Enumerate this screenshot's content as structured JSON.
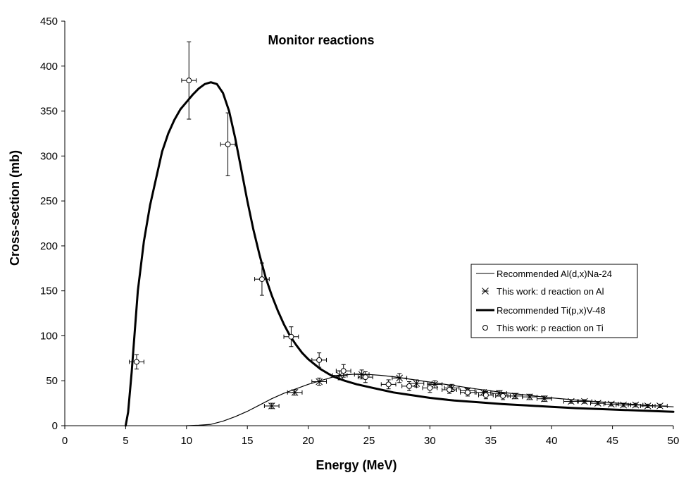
{
  "chart_data": {
    "type": "scatter",
    "title": "Monitor reactions",
    "xlabel": "Energy (MeV)",
    "ylabel": "Cross-section (mb)",
    "xlim": [
      0,
      50
    ],
    "ylim": [
      0,
      450
    ],
    "xticks": [
      0,
      5,
      10,
      15,
      20,
      25,
      30,
      35,
      40,
      45,
      50
    ],
    "yticks": [
      0,
      50,
      100,
      150,
      200,
      250,
      300,
      350,
      400,
      450
    ],
    "grid": false,
    "legend_position": "right",
    "series": [
      {
        "name": "Recommended Al(d,x)Na-24",
        "kind": "line",
        "style": "thin",
        "color": "#000000",
        "x": [
          10,
          11,
          12,
          13,
          14,
          15,
          16,
          17,
          18,
          19,
          20,
          21,
          22,
          23,
          24,
          25,
          26,
          27,
          28,
          29,
          30,
          32,
          34,
          36,
          38,
          40,
          42,
          44,
          46,
          48,
          50
        ],
        "y": [
          0,
          0.5,
          1.5,
          5,
          10,
          16,
          23,
          30,
          36,
          41,
          46,
          50,
          54,
          56.5,
          57.5,
          57,
          56,
          54.5,
          52.5,
          50.5,
          48.5,
          44.5,
          40.5,
          37,
          34,
          31,
          28.5,
          26.5,
          24.5,
          22.5,
          21
        ]
      },
      {
        "name": "This work: d reaction on Al",
        "kind": "points",
        "marker": "asterisk",
        "color": "#000000",
        "x": [
          17.0,
          18.9,
          20.9,
          22.6,
          24.4,
          27.5,
          28.9,
          30.4,
          31.8,
          33.1,
          34.4,
          35.7,
          37.0,
          38.2,
          39.4,
          41.6,
          42.7,
          43.8,
          44.9,
          45.9,
          46.9,
          47.9,
          48.9
        ],
        "y": [
          22,
          37,
          49,
          56,
          57,
          53,
          47,
          46,
          42,
          39,
          37,
          36,
          33,
          32,
          30,
          27,
          27,
          25,
          24,
          23,
          23,
          22,
          22
        ],
        "x_err": [
          0.6,
          0.6,
          0.6,
          0.6,
          0.6,
          0.6,
          0.6,
          0.6,
          0.6,
          0.6,
          0.6,
          0.6,
          0.6,
          0.6,
          0.6,
          0.6,
          0.6,
          0.6,
          0.6,
          0.6,
          0.6,
          0.6,
          0.6
        ],
        "y_err": [
          3,
          3,
          4,
          5,
          5,
          5,
          4,
          4,
          4,
          3,
          3,
          3,
          3,
          3,
          3,
          2,
          2,
          2,
          2,
          2,
          2,
          2,
          2
        ]
      },
      {
        "name": "Recommended Ti(p,x)V-48",
        "kind": "line",
        "style": "thick",
        "color": "#000000",
        "x": [
          5.0,
          5.2,
          5.5,
          6.0,
          6.5,
          7.0,
          7.5,
          8.0,
          8.5,
          9.0,
          9.5,
          10.0,
          10.5,
          11.0,
          11.5,
          12.0,
          12.5,
          13.0,
          13.5,
          14.0,
          14.5,
          15.0,
          15.5,
          16.0,
          16.5,
          17.0,
          17.5,
          18.0,
          18.5,
          19.0,
          19.5,
          20.0,
          21.0,
          22.0,
          23.0,
          24.0,
          25.0,
          26.0,
          27.0,
          28.0,
          30.0,
          32.0,
          34.0,
          36.0,
          38.0,
          40.0,
          42.0,
          44.0,
          46.0,
          48.0,
          50.0
        ],
        "y": [
          0,
          15,
          60,
          150,
          205,
          245,
          275,
          305,
          325,
          340,
          352,
          360,
          368,
          375,
          380,
          382,
          380,
          370,
          350,
          320,
          285,
          250,
          218,
          190,
          165,
          145,
          128,
          113,
          100,
          90,
          81,
          74,
          63,
          55,
          50,
          46,
          43,
          40,
          37,
          35,
          31,
          28,
          26,
          24,
          22.5,
          21,
          19.5,
          18.5,
          17.5,
          16.5,
          15.5
        ]
      },
      {
        "name": "This work: p reaction on Ti",
        "kind": "points",
        "marker": "circle",
        "color": "#000000",
        "x": [
          5.9,
          10.2,
          13.4,
          16.2,
          18.6,
          20.9,
          22.9,
          24.7,
          26.6,
          28.3,
          30.0,
          31.6,
          33.1,
          34.6,
          36.0
        ],
        "y": [
          71,
          384,
          313,
          163,
          99,
          73,
          61,
          54,
          46,
          44,
          42,
          40,
          37,
          34,
          33
        ],
        "x_err": [
          0.6,
          0.6,
          0.6,
          0.6,
          0.6,
          0.6,
          0.6,
          0.6,
          0.6,
          0.6,
          0.6,
          0.6,
          0.6,
          0.6,
          0.6
        ],
        "y_err": [
          8,
          43,
          35,
          18,
          11,
          8,
          7,
          6,
          5,
          5,
          5,
          4,
          4,
          4,
          4
        ]
      }
    ]
  }
}
